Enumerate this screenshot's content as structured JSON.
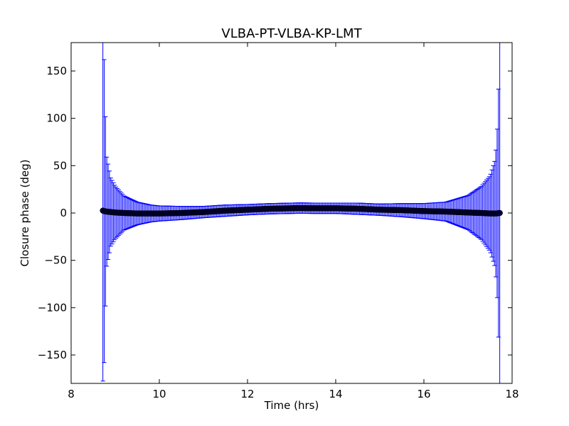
{
  "chart_data": {
    "type": "scatter",
    "title": "VLBA-PT-VLBA-KP-LMT",
    "xlabel": "Time (hrs)",
    "ylabel": "Closure phase (deg)",
    "xlim": [
      8,
      18
    ],
    "ylim": [
      -180,
      180
    ],
    "xticks": [
      8,
      10,
      12,
      14,
      16,
      18
    ],
    "yticks": [
      -150,
      -100,
      -50,
      0,
      50,
      100,
      150
    ],
    "xtick_labels": [
      "8",
      "10",
      "12",
      "14",
      "16",
      "18"
    ],
    "ytick_labels": [
      "−150",
      "−100",
      "−50",
      "0",
      "50",
      "100",
      "150"
    ],
    "grid": false,
    "legend": "none",
    "series": [
      {
        "marker": "filled circle",
        "color": "#000033",
        "errorbar_color": "#0000ff",
        "x": [
          8.72,
          8.75,
          8.8,
          8.9,
          9.0,
          9.2,
          9.5,
          9.8,
          10.0,
          10.5,
          11.0,
          11.5,
          12.0,
          12.5,
          13.0,
          13.2,
          13.5,
          14.0,
          14.5,
          15.0,
          15.5,
          16.0,
          16.5,
          17.0,
          17.3,
          17.5,
          17.6,
          17.65,
          17.7,
          17.72
        ],
        "y": [
          2.5,
          2.0,
          1.5,
          1.0,
          0.5,
          0.0,
          -0.5,
          -0.5,
          -0.5,
          0.0,
          1.0,
          2.5,
          3.5,
          4.5,
          5.0,
          5.2,
          5.0,
          5.0,
          4.5,
          3.5,
          3.0,
          2.0,
          1.5,
          0.5,
          0.0,
          -0.5,
          -0.5,
          -0.5,
          0.0,
          0.0
        ],
        "err": [
          180,
          160,
          60,
          36,
          28,
          18,
          12,
          9,
          8,
          7,
          6,
          6,
          5.5,
          5.5,
          5.5,
          5.5,
          5.5,
          5.5,
          6,
          6,
          7,
          8,
          10,
          18,
          28,
          40,
          55,
          75,
          145,
          180
        ]
      }
    ]
  }
}
